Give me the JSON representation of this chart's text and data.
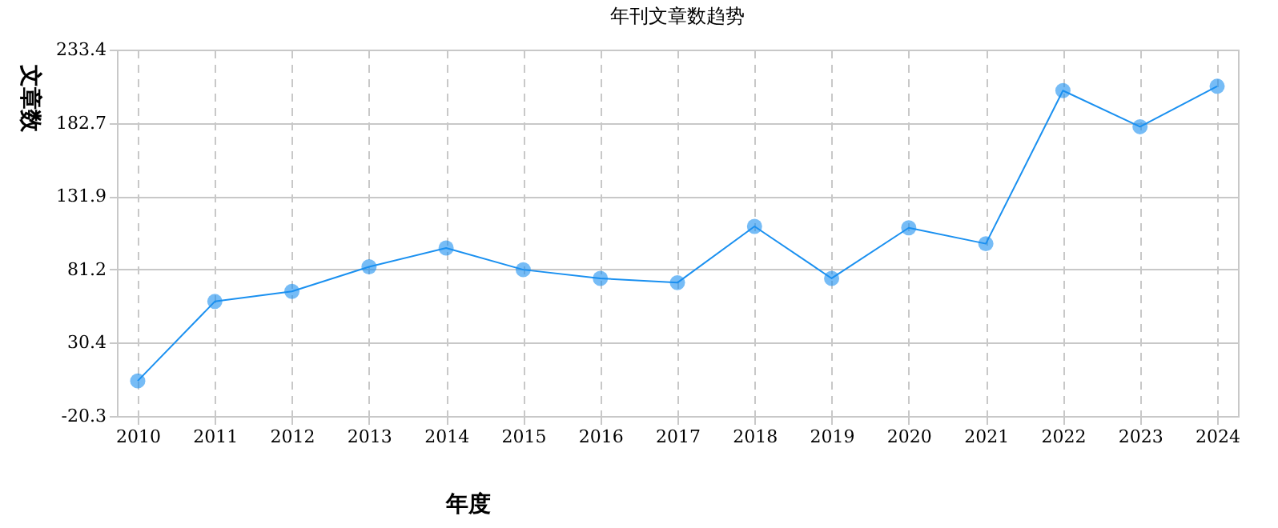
{
  "chart_data": {
    "type": "line",
    "title": "年刊文章数趋势",
    "xlabel": "年度",
    "ylabel": "文章数",
    "categories": [
      "2010",
      "2011",
      "2012",
      "2013",
      "2014",
      "2015",
      "2016",
      "2017",
      "2018",
      "2019",
      "2020",
      "2021",
      "2022",
      "2023",
      "2024"
    ],
    "series": [
      {
        "color": "#1a90f0",
        "values": [
          4,
          59,
          66,
          83,
          96,
          81,
          75,
          72,
          111,
          75,
          110,
          99,
          205,
          180,
          208
        ]
      }
    ],
    "ylim": [
      -20.3,
      233.4
    ],
    "yticks": [
      -20.3,
      30.4,
      81.2,
      131.9,
      182.7,
      233.4
    ],
    "grid": true,
    "marker": "circle",
    "line_style": "solid"
  }
}
